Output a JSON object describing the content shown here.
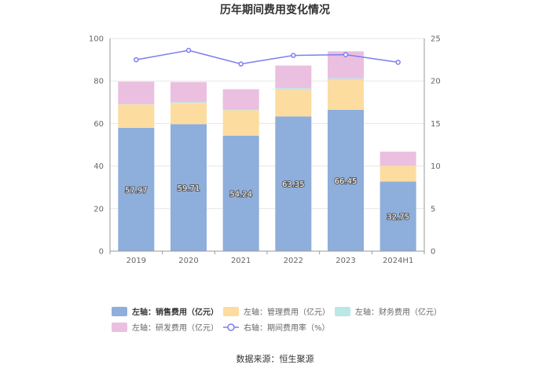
{
  "chart_data": {
    "type": "bar",
    "title": "历年期间费用变化情况",
    "categories": [
      "2019",
      "2020",
      "2021",
      "2022",
      "2023",
      "2024H1"
    ],
    "series": [
      {
        "name": "左轴：销售费用（亿元）",
        "axis": "left",
        "kind": "stacked-bar",
        "color": "#8eaedb",
        "values": [
          57.97,
          59.71,
          54.24,
          63.35,
          66.45,
          32.75
        ],
        "labels": [
          "57.97",
          "59.71",
          "54.24",
          "63.35",
          "66.45",
          "32.75"
        ]
      },
      {
        "name": "左轴：管理费用（亿元）",
        "axis": "left",
        "kind": "stacked-bar",
        "color": "#fddca0",
        "values": [
          11.0,
          10.0,
          12.0,
          12.5,
          14.0,
          7.3
        ]
      },
      {
        "name": "左轴：财务费用（亿元）",
        "axis": "left",
        "kind": "stacked-bar",
        "color": "#b9e8e6",
        "values": [
          0.2,
          0.3,
          0.3,
          0.8,
          0.8,
          0.1
        ]
      },
      {
        "name": "左轴：研发费用（亿元）",
        "axis": "left",
        "kind": "stacked-bar",
        "color": "#ebbfdf",
        "values": [
          10.5,
          9.5,
          9.6,
          10.6,
          12.7,
          6.6
        ]
      },
      {
        "name": "右轴：期间费用率（%）",
        "axis": "right",
        "kind": "line",
        "color": "#7d7ef0",
        "values": [
          22.5,
          23.6,
          22.0,
          23.0,
          23.1,
          22.2
        ]
      }
    ],
    "y_left": {
      "min": 0,
      "max": 100,
      "ticks": [
        "0",
        "20",
        "40",
        "60",
        "80",
        "100"
      ]
    },
    "y_right": {
      "min": 0,
      "max": 25,
      "ticks": [
        "0",
        "5",
        "10",
        "15",
        "20",
        "25"
      ]
    },
    "grid": true,
    "legend_position": "bottom",
    "source": "数据来源：恒生聚源"
  }
}
